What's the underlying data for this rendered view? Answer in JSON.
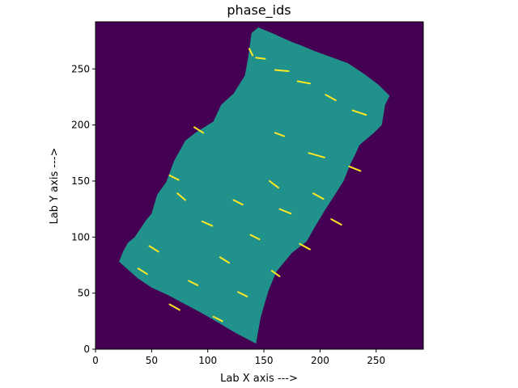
{
  "chart_data": {
    "type": "heatmap",
    "title": "phase_ids",
    "xlabel": "Lab X axis --->",
    "ylabel": "Lab Y axis --->",
    "xlim": [
      0,
      292
    ],
    "ylim": [
      0,
      292
    ],
    "x_ticks": [
      "0",
      "50",
      "100",
      "150",
      "200",
      "250"
    ],
    "y_ticks": [
      "0",
      "50",
      "100",
      "150",
      "200",
      "250"
    ],
    "colormap": "viridis",
    "phases": [
      {
        "id": "background",
        "color": "#440154"
      },
      {
        "id": "phase-1",
        "color": "#21918c"
      },
      {
        "id": "phase-2",
        "color": "#fde725"
      }
    ],
    "sample_outline": [
      [
        145,
        287
      ],
      [
        157,
        282
      ],
      [
        175,
        274
      ],
      [
        183,
        271
      ],
      [
        195,
        266
      ],
      [
        225,
        255
      ],
      [
        240,
        245
      ],
      [
        252,
        236
      ],
      [
        262,
        226
      ],
      [
        258,
        218
      ],
      [
        255,
        200
      ],
      [
        248,
        193
      ],
      [
        235,
        182
      ],
      [
        232,
        175
      ],
      [
        227,
        165
      ],
      [
        221,
        150
      ],
      [
        214,
        139
      ],
      [
        205,
        125
      ],
      [
        196,
        110
      ],
      [
        188,
        96
      ],
      [
        175,
        86
      ],
      [
        161,
        69
      ],
      [
        154,
        52
      ],
      [
        147,
        28
      ],
      [
        143,
        5
      ],
      [
        124,
        15
      ],
      [
        107,
        25
      ],
      [
        95,
        32
      ],
      [
        80,
        40
      ],
      [
        65,
        48
      ],
      [
        50,
        55
      ],
      [
        38,
        63
      ],
      [
        21,
        78
      ],
      [
        25,
        88
      ],
      [
        29,
        95
      ],
      [
        35,
        100
      ],
      [
        45,
        115
      ],
      [
        50,
        121
      ],
      [
        55,
        138
      ],
      [
        63,
        149
      ],
      [
        70,
        168
      ],
      [
        80,
        186
      ],
      [
        89,
        193
      ],
      [
        105,
        203
      ],
      [
        112,
        218
      ],
      [
        123,
        228
      ],
      [
        133,
        244
      ],
      [
        136,
        260
      ],
      [
        139,
        282
      ]
    ],
    "phase2_segments": [
      [
        [
          137,
          268
        ],
        [
          140,
          262
        ]
      ],
      [
        [
          143,
          260
        ],
        [
          151,
          259
        ]
      ],
      [
        [
          160,
          249
        ],
        [
          172,
          248
        ]
      ],
      [
        [
          180,
          239
        ],
        [
          191,
          237
        ]
      ],
      [
        [
          205,
          227
        ],
        [
          214,
          222
        ]
      ],
      [
        [
          229,
          213
        ],
        [
          241,
          209
        ]
      ],
      [
        [
          88,
          198
        ],
        [
          96,
          193
        ]
      ],
      [
        [
          160,
          193
        ],
        [
          168,
          190
        ]
      ],
      [
        [
          190,
          175
        ],
        [
          204,
          171
        ]
      ],
      [
        [
          226,
          163
        ],
        [
          236,
          159
        ]
      ],
      [
        [
          66,
          155
        ],
        [
          74,
          151
        ]
      ],
      [
        [
          155,
          150
        ],
        [
          163,
          144
        ]
      ],
      [
        [
          194,
          139
        ],
        [
          203,
          134
        ]
      ],
      [
        [
          73,
          139
        ],
        [
          80,
          133
        ]
      ],
      [
        [
          123,
          133
        ],
        [
          131,
          129
        ]
      ],
      [
        [
          164,
          125
        ],
        [
          174,
          121
        ]
      ],
      [
        [
          210,
          116
        ],
        [
          219,
          111
        ]
      ],
      [
        [
          95,
          114
        ],
        [
          104,
          110
        ]
      ],
      [
        [
          138,
          102
        ],
        [
          146,
          98
        ]
      ],
      [
        [
          182,
          94
        ],
        [
          191,
          89
        ]
      ],
      [
        [
          48,
          92
        ],
        [
          56,
          87
        ]
      ],
      [
        [
          111,
          82
        ],
        [
          119,
          77
        ]
      ],
      [
        [
          157,
          70
        ],
        [
          164,
          65
        ]
      ],
      [
        [
          38,
          72
        ],
        [
          46,
          67
        ]
      ],
      [
        [
          83,
          61
        ],
        [
          91,
          57
        ]
      ],
      [
        [
          127,
          51
        ],
        [
          135,
          47
        ]
      ],
      [
        [
          66,
          40
        ],
        [
          75,
          35
        ]
      ],
      [
        [
          105,
          29
        ],
        [
          113,
          25
        ]
      ]
    ]
  }
}
